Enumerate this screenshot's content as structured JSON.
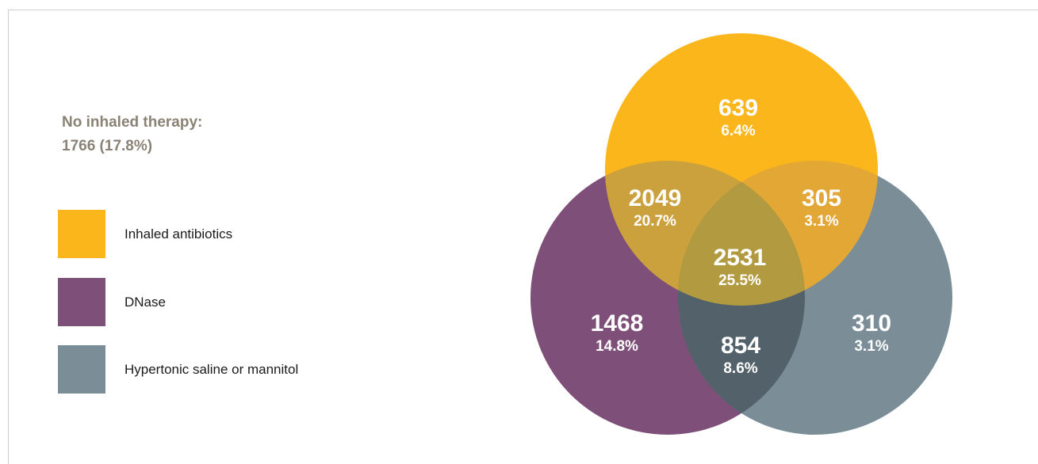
{
  "no_therapy": {
    "label": "No inhaled therapy:",
    "value": "1766 (17.8%)"
  },
  "colors": {
    "antibiotics": "#fbb61b",
    "dnase": "#7e4f78",
    "saline": "#7b8e98",
    "text_gray": "#8a8275"
  },
  "legend": [
    {
      "label": "Inhaled antibiotics",
      "color": "#fbb61b"
    },
    {
      "label": "DNase",
      "color": "#7e4f78"
    },
    {
      "label": "Hypertonic saline or mannitol",
      "color": "#7b8e98"
    }
  ],
  "regions": [
    {
      "key": "antibiotics_only",
      "count": "639",
      "percent": "6.4%"
    },
    {
      "key": "antibiotics_dnase",
      "count": "2049",
      "percent": "20.7%"
    },
    {
      "key": "antibiotics_saline",
      "count": "305",
      "percent": "3.1%"
    },
    {
      "key": "all_three",
      "count": "2531",
      "percent": "25.5%"
    },
    {
      "key": "dnase_only",
      "count": "1468",
      "percent": "14.8%"
    },
    {
      "key": "dnase_saline",
      "count": "854",
      "percent": "8.6%"
    },
    {
      "key": "saline_only",
      "count": "310",
      "percent": "3.1%"
    }
  ]
}
